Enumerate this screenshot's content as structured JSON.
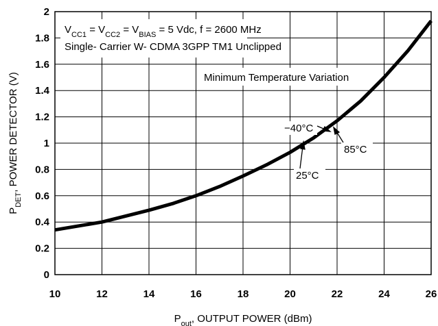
{
  "chart_data": {
    "type": "line",
    "xlabel": [
      "P",
      "out",
      ", OUTPUT POWER (dBm)"
    ],
    "ylabel": [
      "P",
      "DET",
      ", POWER DETECTOR (V)"
    ],
    "x": [
      10,
      11,
      12,
      13,
      14,
      15,
      16,
      17,
      18,
      19,
      20,
      21,
      22,
      23,
      24,
      25,
      26
    ],
    "series": [
      {
        "color": "#000000",
        "values": [
          0.34,
          0.37,
          0.4,
          0.445,
          0.49,
          0.54,
          0.6,
          0.67,
          0.75,
          0.835,
          0.93,
          1.04,
          1.17,
          1.32,
          1.5,
          1.7,
          1.93
        ]
      }
    ],
    "xlim": [
      10,
      26
    ],
    "xticks": [
      10,
      12,
      14,
      16,
      18,
      20,
      22,
      24,
      26
    ],
    "ylim": [
      0,
      2
    ],
    "yticks": [
      0,
      0.2,
      0.4,
      0.6,
      0.8,
      1,
      1.2,
      1.4,
      1.6,
      1.8,
      2
    ],
    "grid": true,
    "annotations": {
      "conditions": [
        "V",
        "CC1",
        " = V",
        "CC2",
        " = V",
        "BIAS",
        " = 5 Vdc, f = 2600 MHz"
      ],
      "signal": "Single- Carrier W- CDMA 3GPP TM1 Unclipped",
      "note": "Minimum Temperature Variation",
      "t_cold": "−40°C",
      "t_room": "25°C",
      "t_hot": "85°C"
    }
  }
}
